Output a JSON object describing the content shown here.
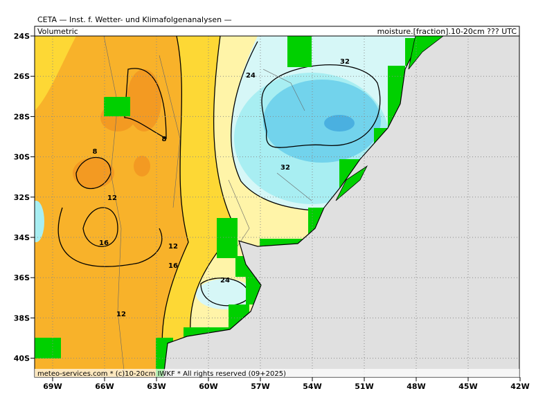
{
  "header": {
    "title": "CETA — Inst. f. Wetter- und Klimafolgenanalysen —",
    "left": "Volumetric",
    "right": "moisture.[fraction].10-20cm ??? UTC"
  },
  "footer": "meteo-services.com * (c)10-20cm IWKF * All rights reserved (09+2025)",
  "latitudes": [
    "24S",
    "26S",
    "28S",
    "30S",
    "32S",
    "34S",
    "36S",
    "38S",
    "40S"
  ],
  "longitudes": [
    "69W",
    "66W",
    "63W",
    "60W",
    "57W",
    "54W",
    "51W",
    "48W",
    "45W",
    "42W"
  ],
  "contour_labels": [
    "24",
    "32",
    "8",
    "8",
    "12",
    "16",
    "12",
    "16",
    "24",
    "32",
    "12"
  ]
}
